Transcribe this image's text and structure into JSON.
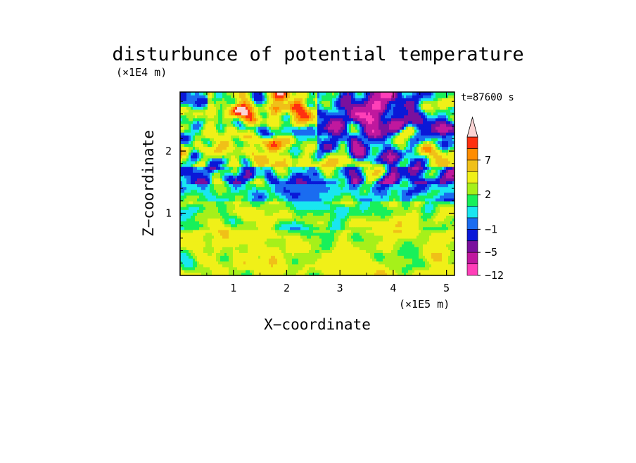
{
  "chart_data": {
    "type": "heatmap",
    "title": "disturbunce of potential temperature",
    "time_label": "t=87600 s",
    "xlabel": "X−coordinate",
    "ylabel": "Z−coordinate",
    "x_unit_label": "(×1E5 m)",
    "y_unit_label": "(×1E4 m)",
    "xlim": [
      0,
      5.15
    ],
    "ylim": [
      0,
      2.95
    ],
    "x_ticks": [
      "1",
      "2",
      "3",
      "4",
      "5"
    ],
    "x_tick_values": [
      1,
      2,
      3,
      4,
      5
    ],
    "y_ticks": [
      "1",
      "2"
    ],
    "y_tick_values": [
      1,
      2
    ],
    "colorbar": {
      "extend": "max",
      "levels": [
        -12,
        -8,
        -5,
        -3,
        -1,
        0,
        1,
        2,
        3,
        5,
        7,
        9,
        11
      ],
      "tick_labels": [
        "−12",
        "−5",
        "−1",
        "2",
        "7"
      ],
      "tick_values": [
        -12,
        -5,
        -1,
        2,
        7
      ],
      "colors": [
        "#ff3fb8",
        "#c0189e",
        "#7a109e",
        "#0a18d8",
        "#1a6cf0",
        "#19e6f0",
        "#18f05a",
        "#a6f01a",
        "#f0f018",
        "#f0c018",
        "#ff8c00",
        "#ff3010",
        "#f0a0a6",
        "#fbd4d4"
      ]
    },
    "field": {
      "nx": 130,
      "nz": 64,
      "description_rows": "smoothed random field, larger values aloft"
    },
    "grid": false
  }
}
